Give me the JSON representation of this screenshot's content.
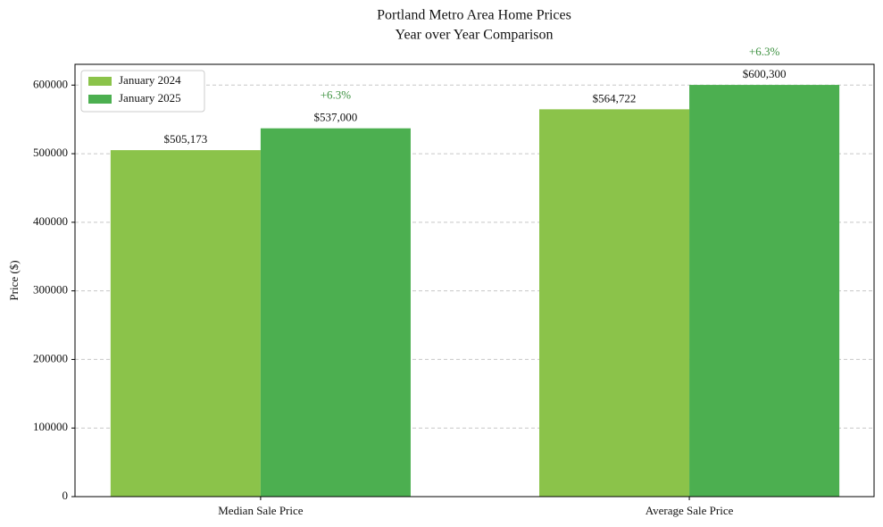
{
  "chart_data": {
    "type": "bar",
    "title": "Portland Metro Area Home Prices",
    "subtitle": "Year over Year Comparison",
    "ylabel": "Price ($)",
    "categories": [
      "Median Sale Price",
      "Average Sale Price"
    ],
    "series": [
      {
        "name": "January 2024",
        "color": "#8bc34a",
        "values": [
          505173,
          564722
        ],
        "value_labels": [
          "$505,173",
          "$564,722"
        ]
      },
      {
        "name": "January 2025",
        "color": "#4caf50",
        "values": [
          537000,
          600300
        ],
        "value_labels": [
          "$537,000",
          "$600,300"
        ]
      }
    ],
    "annotations": [
      "+6.3%",
      "+6.3%"
    ],
    "annotation_color": "#3d9140",
    "ylim": [
      0,
      630315
    ],
    "yticks": [
      0,
      100000,
      200000,
      300000,
      400000,
      500000,
      600000
    ],
    "grid": true,
    "legend": "upper left"
  }
}
